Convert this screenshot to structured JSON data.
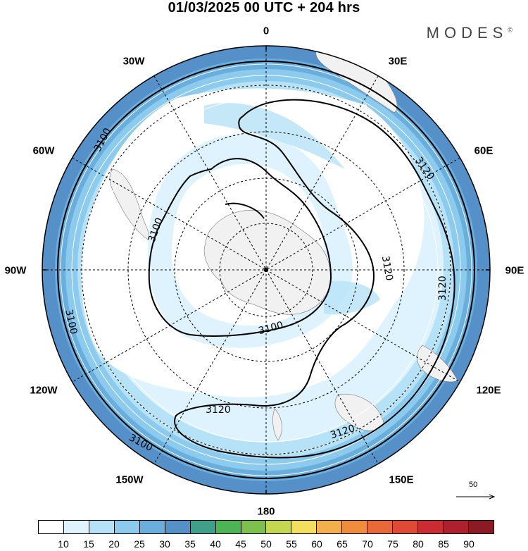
{
  "header": {
    "title": "01/03/2025  00 UTC  + 204 hrs",
    "brand": "MODES",
    "brand_mark": "©"
  },
  "map": {
    "projection": "south-polar-stereographic",
    "longitude_labels": {
      "lon_0": "0",
      "lon_30e": "30E",
      "lon_60e": "60E",
      "lon_90e": "90E",
      "lon_120e": "120E",
      "lon_150e": "150E",
      "lon_180": "180",
      "lon_150w": "150W",
      "lon_120w": "120W",
      "lon_90w": "90W",
      "lon_60w": "60W",
      "lon_30w": "30W"
    },
    "contour_labels": {
      "a": "3100",
      "b": "3120",
      "c": "3120",
      "d": "3120",
      "e": "3100",
      "f": "3100",
      "g": "3100",
      "h": "3120",
      "i": "3100",
      "j": "3120",
      "k": "3100"
    },
    "reference_vector": "50"
  },
  "colorbar": {
    "colors": [
      "#ffffff",
      "#def3fd",
      "#b6e2f7",
      "#8ccaee",
      "#6aaede",
      "#5590c8",
      "#3fa08a",
      "#4db454",
      "#7dc04e",
      "#c3d84e",
      "#f3df5b",
      "#f3b04a",
      "#ef8d3c",
      "#e8683a",
      "#de4a36",
      "#cb2c32",
      "#b01f2d",
      "#8c1a22"
    ],
    "tick_labels": [
      "10",
      "15",
      "20",
      "25",
      "30",
      "35",
      "40",
      "45",
      "50",
      "55",
      "60",
      "65",
      "70",
      "75",
      "80",
      "85",
      "90"
    ]
  }
}
